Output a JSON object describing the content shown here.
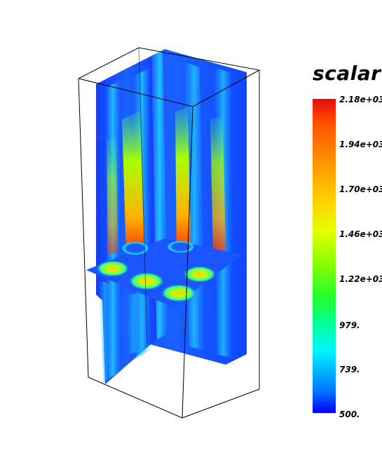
{
  "legend": {
    "title": "scalar",
    "ticks": [
      "2.18e+03",
      "1.94e+03",
      "1.70e+03",
      "1.46e+03",
      "1.22e+03",
      "979.",
      "739.",
      "500."
    ],
    "min": 500,
    "max": 2180
  },
  "colors": {
    "low": "#0000ff",
    "mid": "#00ff9c",
    "high": "#e80b0b",
    "slice_bg": "#1a4dff"
  }
}
